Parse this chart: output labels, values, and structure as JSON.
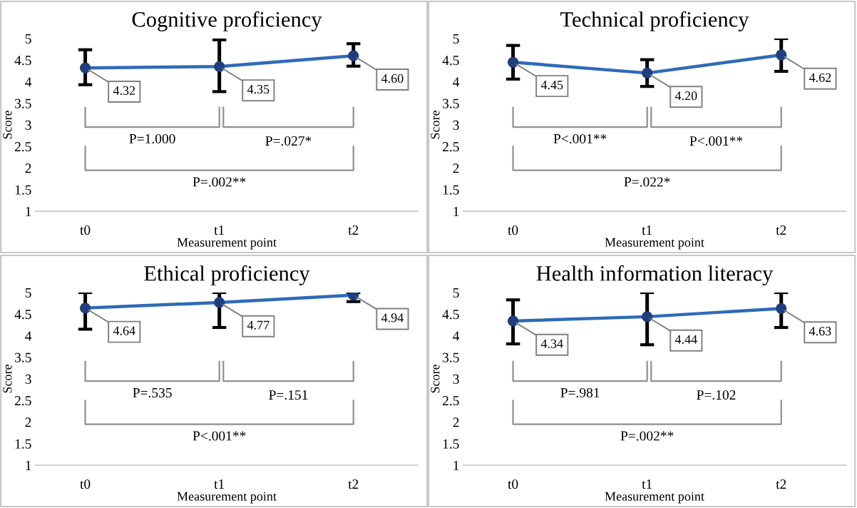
{
  "chart_data": [
    {
      "type": "line",
      "title": "Cognitive proficiency",
      "xlabel": "Measurement point",
      "ylabel": "Score",
      "categories": [
        "t0",
        "t1",
        "t2"
      ],
      "ylim": [
        1,
        5
      ],
      "yticks": [
        1,
        1.5,
        2,
        2.5,
        3,
        3.5,
        4,
        4.5,
        5
      ],
      "grid": false,
      "legend": false,
      "marker": "circle",
      "line_style": "solid",
      "series": [
        {
          "color": "#2e6bb8",
          "values": [
            4.32,
            4.35,
            4.6
          ],
          "value_labels": [
            "4.32",
            "4.35",
            "4.60"
          ],
          "errors": [
            [
              3.93,
              4.74
            ],
            [
              3.77,
              4.97
            ],
            [
              4.36,
              4.88
            ]
          ]
        }
      ],
      "annotations": [
        "P=1.000",
        "P=.027*",
        "P=.002**"
      ]
    },
    {
      "type": "line",
      "title": "Technical proficiency",
      "xlabel": "Measurement point",
      "ylabel": "Score",
      "categories": [
        "t0",
        "t1",
        "t2"
      ],
      "ylim": [
        1,
        5
      ],
      "yticks": [
        1,
        1.5,
        2,
        2.5,
        3,
        3.5,
        4,
        4.5,
        5
      ],
      "grid": false,
      "legend": false,
      "marker": "circle",
      "line_style": "solid",
      "series": [
        {
          "color": "#2e6bb8",
          "values": [
            4.45,
            4.2,
            4.62
          ],
          "value_labels": [
            "4.45",
            "4.20",
            "4.62"
          ],
          "errors": [
            [
              4.06,
              4.84
            ],
            [
              3.89,
              4.51
            ],
            [
              4.24,
              5.0
            ]
          ]
        }
      ],
      "annotations": [
        "P<.001**",
        "P<.001**",
        "P=.022*"
      ]
    },
    {
      "type": "line",
      "title": "Ethical proficiency",
      "xlabel": "Measurement point",
      "ylabel": "Score",
      "categories": [
        "t0",
        "t1",
        "t2"
      ],
      "ylim": [
        1,
        5
      ],
      "yticks": [
        1,
        1.5,
        2,
        2.5,
        3,
        3.5,
        4,
        4.5,
        5
      ],
      "grid": false,
      "legend": false,
      "marker": "circle",
      "line_style": "solid",
      "series": [
        {
          "color": "#2e6bb8",
          "values": [
            4.64,
            4.77,
            4.94
          ],
          "value_labels": [
            "4.64",
            "4.77",
            "4.94"
          ],
          "errors": [
            [
              4.15,
              5.0
            ],
            [
              4.19,
              5.0
            ],
            [
              4.79,
              5.0
            ]
          ]
        }
      ],
      "annotations": [
        "P=.535",
        "P=.151",
        "P<.001**"
      ]
    },
    {
      "type": "line",
      "title": "Health information literacy",
      "xlabel": "Measurement point",
      "ylabel": "Score",
      "categories": [
        "t0",
        "t1",
        "t2"
      ],
      "ylim": [
        1,
        5
      ],
      "yticks": [
        1,
        1.5,
        2,
        2.5,
        3,
        3.5,
        4,
        4.5,
        5
      ],
      "grid": false,
      "legend": false,
      "marker": "circle",
      "line_style": "solid",
      "series": [
        {
          "color": "#2e6bb8",
          "values": [
            4.34,
            4.44,
            4.63
          ],
          "value_labels": [
            "4.34",
            "4.44",
            "4.63"
          ],
          "errors": [
            [
              3.81,
              4.83
            ],
            [
              3.79,
              5.0
            ],
            [
              4.19,
              5.0
            ]
          ]
        }
      ],
      "annotations": [
        "P=.981",
        "P=.102",
        "P=.002**"
      ]
    }
  ]
}
